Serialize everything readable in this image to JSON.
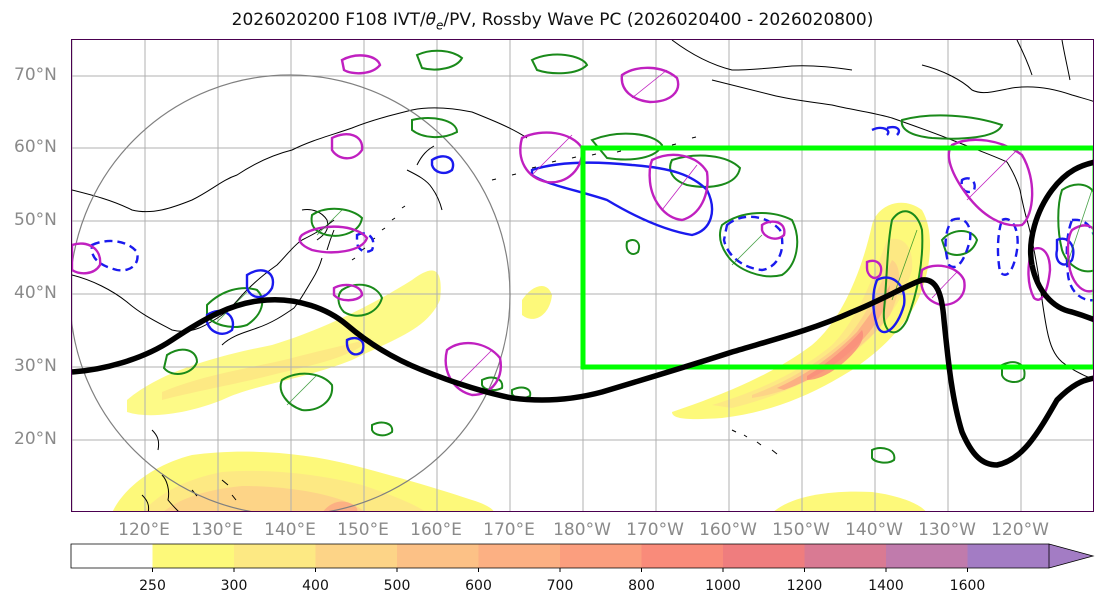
{
  "title": "2026020200 F108 IVT/θe/PV, Rossby Wave PC (2026020400 - 2026020800)",
  "title_parts": {
    "before": "2026020200 F108 IVT/",
    "theta": "θ",
    "sub": "e",
    "after": "/PV, Rossby Wave PC (2026020400 - 2026020800)"
  },
  "lat_labels": [
    "70°N",
    "60°N",
    "50°N",
    "40°N",
    "30°N",
    "20°N"
  ],
  "lon_labels": [
    "120°E",
    "130°E",
    "140°E",
    "150°E",
    "160°E",
    "170°E",
    "180°W",
    "170°W",
    "160°W",
    "150°W",
    "140°W",
    "130°W",
    "120°W"
  ],
  "colorbar": {
    "levels": [
      "250",
      "300",
      "400",
      "500",
      "600",
      "700",
      "800",
      "1000",
      "1200",
      "1400",
      "1600"
    ],
    "colors": [
      "#fdf97a",
      "#fde983",
      "#fdd487",
      "#fcc186",
      "#fcb083",
      "#fb9e7e",
      "#f98b7a",
      "#ef7d7e",
      "#d97a93",
      "#c07bac",
      "#a37cc4"
    ]
  },
  "map_colors": {
    "jet_contour": "#000000",
    "box": "#00ff00",
    "green_contour": "#1a8a1a",
    "blue_contour": "#1a1aee",
    "magenta_contour": "#c020c0",
    "circle": "#808080",
    "coast": "#000000",
    "grid": "#b0b0b0"
  }
}
